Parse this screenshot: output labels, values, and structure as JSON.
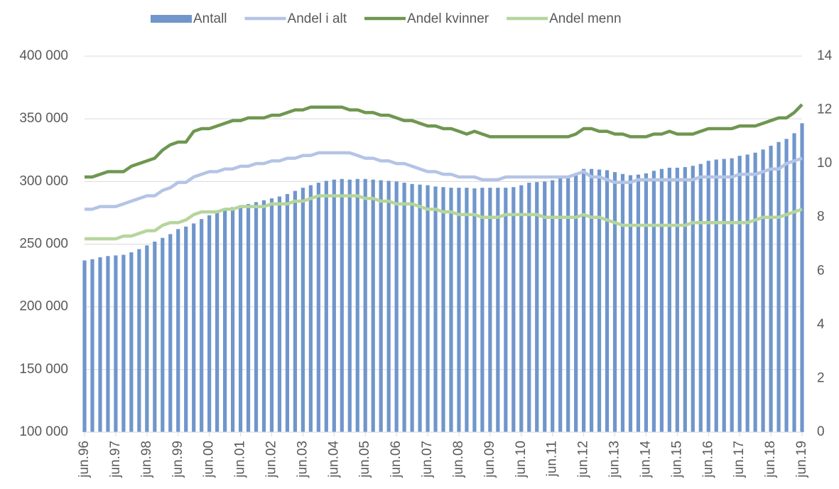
{
  "chart_data": {
    "type": "combo",
    "categories": [
      "jun.96",
      null,
      null,
      null,
      "jun.97",
      null,
      null,
      null,
      "jun.98",
      null,
      null,
      null,
      "jun.99",
      null,
      null,
      null,
      "jun.00",
      null,
      null,
      null,
      "jun.01",
      null,
      null,
      null,
      "jun.02",
      null,
      null,
      null,
      "jun.03",
      null,
      null,
      null,
      "jun.04",
      null,
      null,
      null,
      "jun.05",
      null,
      null,
      null,
      "jun.06",
      null,
      null,
      null,
      "jun.07",
      null,
      null,
      null,
      "jun.08",
      null,
      null,
      null,
      "jun.09",
      null,
      null,
      null,
      "jun.10",
      null,
      null,
      null,
      "jun.11",
      null,
      null,
      null,
      "jun.12",
      null,
      null,
      null,
      "jun.13",
      null,
      null,
      null,
      "jun.14",
      null,
      null,
      null,
      "jun.15",
      null,
      null,
      null,
      "jun.16",
      null,
      null,
      null,
      "jun.17",
      null,
      null,
      null,
      "jun.18",
      null,
      null,
      null,
      "jun.19"
    ],
    "series": [
      {
        "name": "Antall",
        "type": "bar",
        "color": "#7096cb",
        "values": [
          237000,
          238000,
          239500,
          240500,
          241000,
          241500,
          243500,
          246000,
          249000,
          252000,
          255000,
          258000,
          262000,
          264000,
          266500,
          270000,
          273000,
          275000,
          277500,
          279500,
          281000,
          282000,
          283500,
          285000,
          286500,
          288000,
          290000,
          292500,
          295000,
          297000,
          299000,
          300500,
          301500,
          302000,
          301500,
          302000,
          302000,
          301500,
          301000,
          300500,
          300000,
          299000,
          298000,
          297500,
          297000,
          296000,
          295500,
          295000,
          295000,
          295000,
          294500,
          295000,
          295000,
          295000,
          295000,
          295500,
          297000,
          299000,
          299500,
          300000,
          301000,
          302500,
          304000,
          305500,
          310000,
          310000,
          309500,
          309000,
          307500,
          306000,
          305000,
          305500,
          306500,
          308500,
          310000,
          311000,
          311000,
          311500,
          312500,
          314000,
          316500,
          317500,
          318000,
          318500,
          320500,
          321500,
          323000,
          325500,
          328500,
          331500,
          334000,
          338500,
          346500
        ]
      },
      {
        "name": "Andel i alt",
        "type": "line",
        "axis": "y2",
        "color": "#b4c4e6",
        "values": [
          8.3,
          8.3,
          8.4,
          8.4,
          8.4,
          8.5,
          8.6,
          8.7,
          8.8,
          8.8,
          9.0,
          9.1,
          9.3,
          9.3,
          9.5,
          9.6,
          9.7,
          9.7,
          9.8,
          9.8,
          9.9,
          9.9,
          10.0,
          10.0,
          10.1,
          10.1,
          10.2,
          10.2,
          10.3,
          10.3,
          10.4,
          10.4,
          10.4,
          10.4,
          10.4,
          10.3,
          10.2,
          10.2,
          10.1,
          10.1,
          10.0,
          10.0,
          9.9,
          9.8,
          9.7,
          9.7,
          9.6,
          9.6,
          9.5,
          9.5,
          9.5,
          9.4,
          9.4,
          9.4,
          9.5,
          9.5,
          9.5,
          9.5,
          9.5,
          9.5,
          9.5,
          9.5,
          9.5,
          9.6,
          9.7,
          9.5,
          9.5,
          9.4,
          9.3,
          9.3,
          9.3,
          9.4,
          9.4,
          9.4,
          9.4,
          9.4,
          9.4,
          9.4,
          9.4,
          9.5,
          9.5,
          9.5,
          9.5,
          9.5,
          9.6,
          9.6,
          9.6,
          9.7,
          9.8,
          9.8,
          10.0,
          10.1,
          10.2
        ]
      },
      {
        "name": "Andel kvinner",
        "type": "line",
        "axis": "y2",
        "color": "#6f9650",
        "values": [
          9.5,
          9.5,
          9.6,
          9.7,
          9.7,
          9.7,
          9.9,
          10.0,
          10.1,
          10.2,
          10.5,
          10.7,
          10.8,
          10.8,
          11.2,
          11.3,
          11.3,
          11.4,
          11.5,
          11.6,
          11.6,
          11.7,
          11.7,
          11.7,
          11.8,
          11.8,
          11.9,
          12.0,
          12.0,
          12.1,
          12.1,
          12.1,
          12.1,
          12.1,
          12.0,
          12.0,
          11.9,
          11.9,
          11.8,
          11.8,
          11.7,
          11.6,
          11.6,
          11.5,
          11.4,
          11.4,
          11.3,
          11.3,
          11.2,
          11.1,
          11.2,
          11.1,
          11.0,
          11.0,
          11.0,
          11.0,
          11.0,
          11.0,
          11.0,
          11.0,
          11.0,
          11.0,
          11.0,
          11.1,
          11.3,
          11.3,
          11.2,
          11.2,
          11.1,
          11.1,
          11.0,
          11.0,
          11.0,
          11.1,
          11.1,
          11.2,
          11.1,
          11.1,
          11.1,
          11.2,
          11.3,
          11.3,
          11.3,
          11.3,
          11.4,
          11.4,
          11.4,
          11.5,
          11.6,
          11.7,
          11.7,
          11.9,
          12.2
        ]
      },
      {
        "name": "Andel menn",
        "type": "line",
        "axis": "y2",
        "color": "#b6d59d",
        "values": [
          7.2,
          7.2,
          7.2,
          7.2,
          7.2,
          7.3,
          7.3,
          7.4,
          7.5,
          7.5,
          7.7,
          7.8,
          7.8,
          7.9,
          8.1,
          8.2,
          8.2,
          8.2,
          8.3,
          8.3,
          8.4,
          8.4,
          8.4,
          8.4,
          8.5,
          8.5,
          8.5,
          8.6,
          8.6,
          8.7,
          8.8,
          8.8,
          8.8,
          8.8,
          8.8,
          8.8,
          8.7,
          8.7,
          8.6,
          8.6,
          8.5,
          8.5,
          8.5,
          8.4,
          8.3,
          8.3,
          8.2,
          8.2,
          8.1,
          8.1,
          8.1,
          8.0,
          8.0,
          8.0,
          8.1,
          8.1,
          8.1,
          8.1,
          8.1,
          8.0,
          8.0,
          8.0,
          8.0,
          8.0,
          8.1,
          8.0,
          8.0,
          7.9,
          7.8,
          7.7,
          7.7,
          7.7,
          7.7,
          7.7,
          7.7,
          7.7,
          7.7,
          7.7,
          7.8,
          7.8,
          7.8,
          7.8,
          7.8,
          7.8,
          7.8,
          7.8,
          7.9,
          8.0,
          8.0,
          8.0,
          8.1,
          8.2,
          8.3
        ]
      }
    ],
    "ylim": [
      100000,
      400000
    ],
    "yticks": [
      {
        "value": 100000,
        "label": "100 000"
      },
      {
        "value": 150000,
        "label": "150 000"
      },
      {
        "value": 200000,
        "label": "200 000"
      },
      {
        "value": 250000,
        "label": "250 000"
      },
      {
        "value": 300000,
        "label": "300 000"
      },
      {
        "value": 350000,
        "label": "350 000"
      },
      {
        "value": 400000,
        "label": "400 000"
      }
    ],
    "y2lim": [
      0,
      14
    ],
    "y2ticks": [
      0,
      2,
      4,
      6,
      8,
      10,
      12,
      14
    ],
    "grid": true,
    "legend": "top"
  }
}
